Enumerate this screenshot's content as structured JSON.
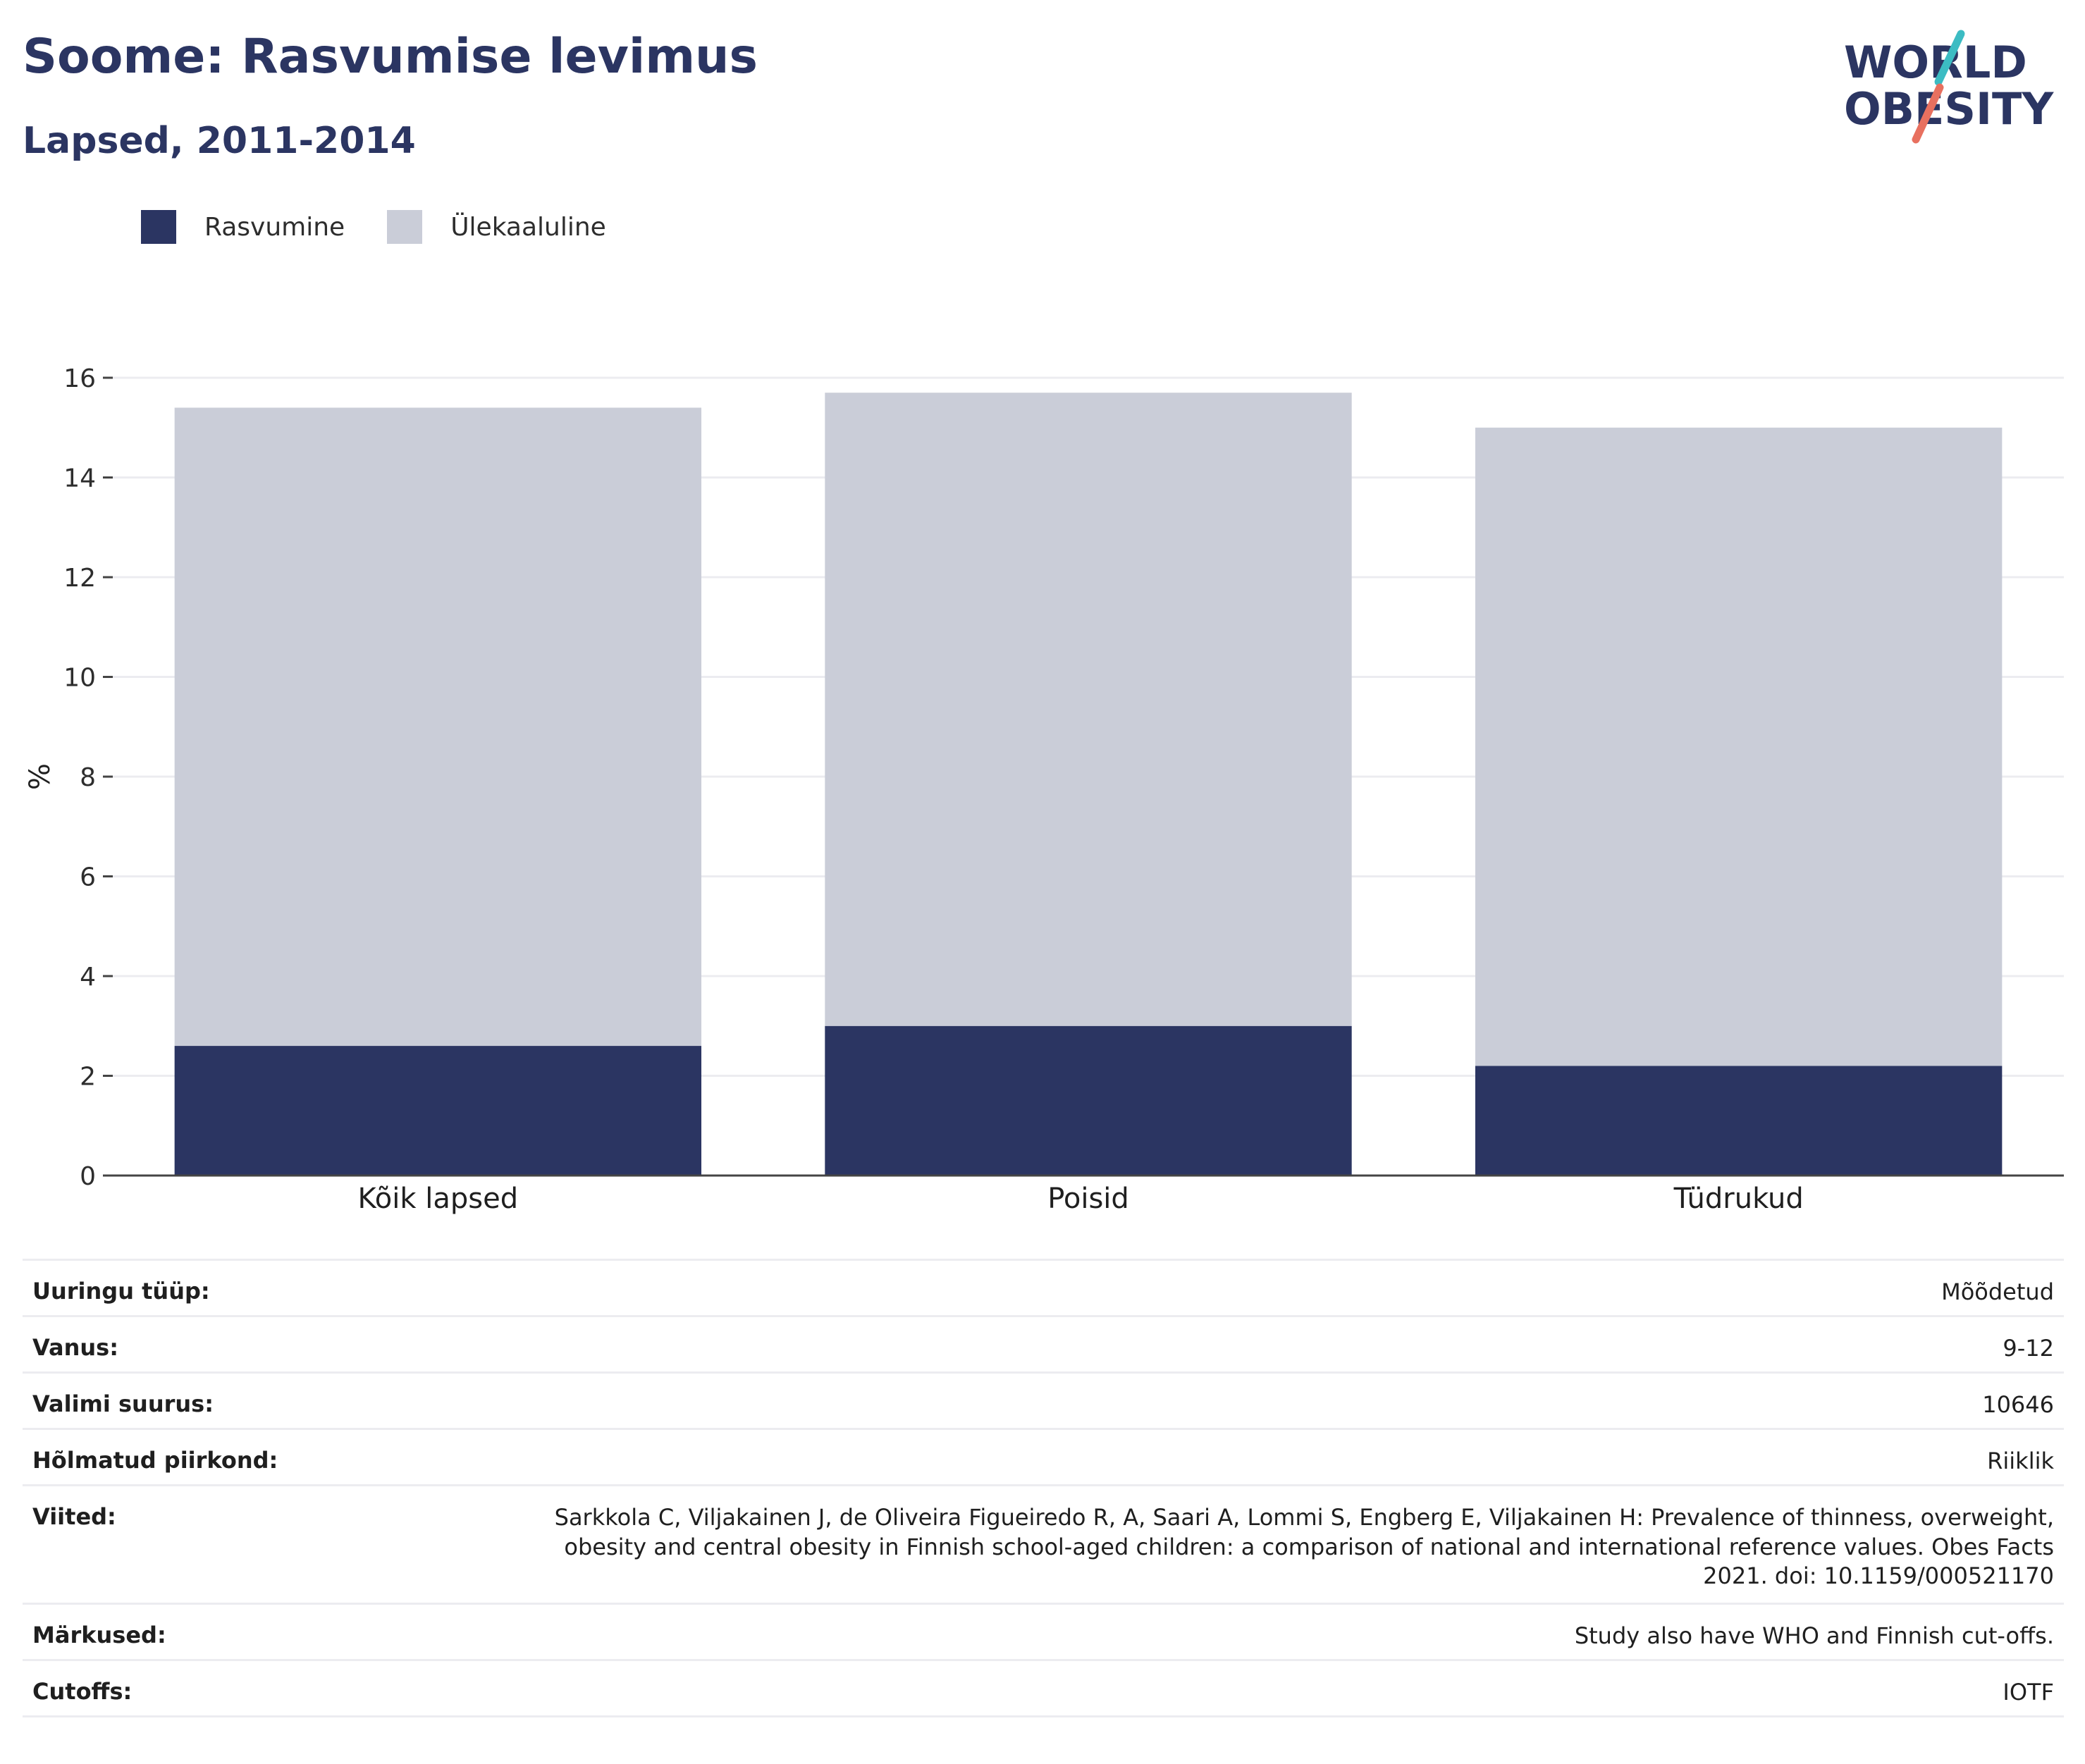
{
  "header": {
    "title": "Soome: Rasvumise levimus",
    "subtitle": "Lapsed, 2011-2014"
  },
  "logo": {
    "line1": "WORLD",
    "line2": "OBESITY"
  },
  "colors": {
    "obesity": "#2b3562",
    "overweight": "#cacdd8",
    "grid": "#ececf0",
    "axis": "#444444",
    "logo_teal": "#3cbcc3",
    "logo_coral": "#e8705f"
  },
  "legend": [
    {
      "label": "Rasvumine",
      "color": "#2b3562"
    },
    {
      "label": "Ülekaaluline",
      "color": "#cacdd8"
    }
  ],
  "chart_data": {
    "type": "bar",
    "stacked": true,
    "categories": [
      "Kõik lapsed",
      "Poisid",
      "Tüdrukud"
    ],
    "series": [
      {
        "name": "Rasvumine",
        "values": [
          2.6,
          3.0,
          2.2
        ]
      },
      {
        "name": "Ülekaaluline",
        "values": [
          12.8,
          12.7,
          12.8
        ]
      }
    ],
    "yticks": [
      0,
      2,
      4,
      6,
      8,
      10,
      12,
      14,
      16
    ],
    "ylabel": "%",
    "xlabel": "",
    "ylim": [
      0,
      16
    ],
    "grid": true,
    "legend_position": "top-left"
  },
  "info": [
    {
      "label": "Uuringu tüüp:",
      "value": "Mõõdetud"
    },
    {
      "label": "Vanus:",
      "value": "9-12"
    },
    {
      "label": "Valimi suurus:",
      "value": "10646"
    },
    {
      "label": "Hõlmatud piirkond:",
      "value": "Riiklik"
    },
    {
      "label": "Viited:",
      "value": "Sarkkola C, Viljakainen J, de Oliveira Figueiredo R, A, Saari A, Lommi S, Engberg E, Viljakainen H: Prevalence of thinness, overweight, obesity and central obesity in Finnish school-aged children: a comparison of national and international reference values. Obes Facts 2021. doi: 10.1159/000521170"
    },
    {
      "label": "Märkused:",
      "value": "Study also have WHO and Finnish cut-offs."
    },
    {
      "label": "Cutoffs:",
      "value": "IOTF"
    }
  ]
}
